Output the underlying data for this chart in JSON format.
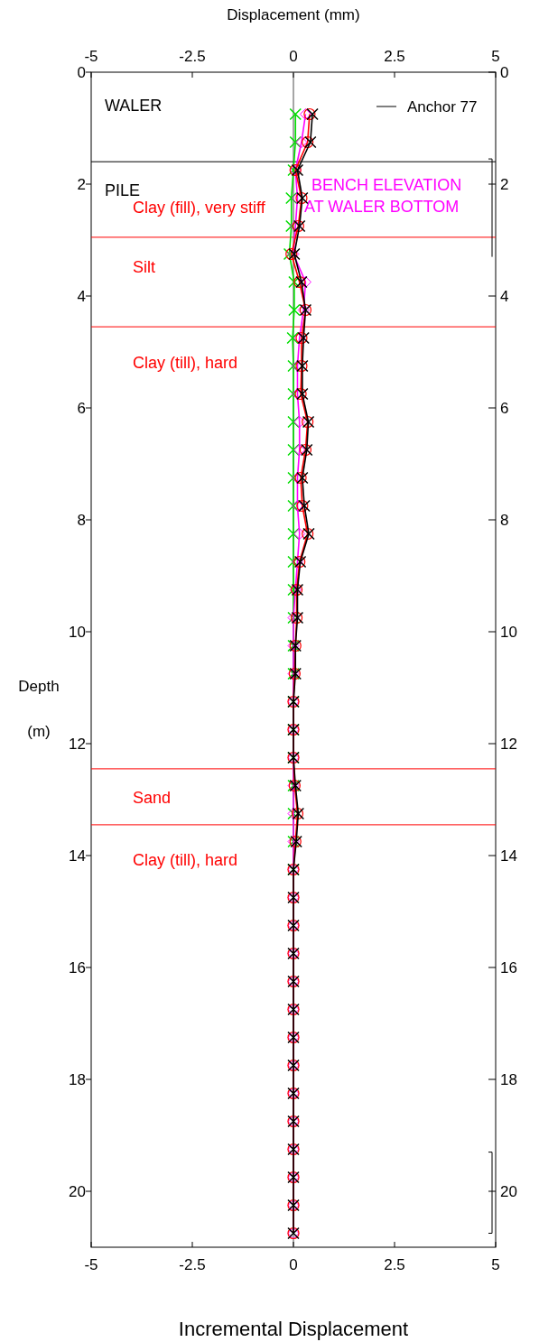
{
  "chart_data": {
    "type": "line",
    "orientation": "horizontal",
    "xlabel": "Incremental Displacement",
    "x2label": "Displacement (mm)",
    "ylabel": "Depth (m)",
    "xlim": [
      -5,
      5
    ],
    "xticks": [
      -5,
      -2.5,
      0,
      2.5,
      5
    ],
    "x2lim": [
      -5,
      5
    ],
    "x2ticks": [
      -5,
      -2.5,
      0,
      2.5,
      5
    ],
    "ylim": [
      21,
      0
    ],
    "yticks": [
      0,
      2,
      4,
      6,
      8,
      10,
      12,
      14,
      16,
      18,
      20
    ],
    "y2lim": [
      21,
      0
    ],
    "y2ticks": [
      0,
      2,
      4,
      6,
      8,
      10,
      12,
      14,
      16,
      18,
      20
    ],
    "x": [
      0.75,
      1.25,
      1.75,
      2.25,
      2.75,
      3.25,
      3.75,
      4.25,
      4.75,
      5.25,
      5.75,
      6.25,
      6.75,
      7.25,
      7.75,
      8.25,
      8.75,
      9.25,
      9.75,
      10.25,
      10.75,
      11.25,
      11.75,
      12.25,
      12.75,
      13.25,
      13.75,
      14.25,
      14.75,
      15.25,
      15.75,
      16.25,
      16.75,
      17.25,
      17.75,
      18.25,
      18.75,
      19.25,
      19.75,
      20.25,
      20.75
    ],
    "series": [
      {
        "color": "#00dd00",
        "marker": "cross",
        "values": [
          0.05,
          0.05,
          0,
          -0.05,
          -0.05,
          -0.1,
          0.02,
          0.02,
          -0.02,
          0,
          0,
          0,
          0,
          0,
          0,
          0,
          0,
          0,
          0,
          0,
          0,
          0,
          0,
          0,
          0,
          0,
          0,
          0,
          null,
          null,
          null,
          null,
          null,
          null,
          null,
          null,
          null,
          null,
          null,
          null,
          null
        ]
      },
      {
        "color": "#ff00ff",
        "marker": "diamond",
        "values": [
          0.3,
          0.2,
          0.05,
          0.1,
          0.05,
          0,
          0.3,
          0.25,
          0.15,
          0.1,
          0.1,
          0.15,
          0.15,
          0.1,
          0.1,
          0.15,
          0.1,
          0.05,
          0,
          0,
          0,
          0,
          0,
          0,
          0,
          0,
          0,
          0,
          0,
          0,
          0,
          0,
          0,
          0,
          0,
          0,
          0,
          0,
          0,
          0,
          0
        ]
      },
      {
        "color": "#ff0000",
        "marker": "circle",
        "values": [
          0.4,
          0.35,
          0.05,
          0.2,
          0.12,
          -0.05,
          0.15,
          0.3,
          0.2,
          0.2,
          0.18,
          0.35,
          0.3,
          0.18,
          0.22,
          0.35,
          0.15,
          0.08,
          0.08,
          0.05,
          0.03,
          0,
          0,
          0,
          0.03,
          0.1,
          0.05,
          0,
          0,
          0,
          0,
          0,
          0,
          0,
          0,
          0,
          0,
          0,
          0,
          0,
          0
        ]
      },
      {
        "name": "Anchor 77",
        "color": "#000000",
        "marker": "cross",
        "values": [
          0.47,
          0.42,
          0.1,
          0.22,
          0.15,
          0.02,
          0.2,
          0.3,
          0.25,
          0.22,
          0.22,
          0.37,
          0.33,
          0.22,
          0.27,
          0.38,
          0.17,
          0.1,
          0.1,
          0.05,
          0.05,
          0,
          0,
          0,
          0.05,
          0.12,
          0.07,
          0,
          0,
          0,
          0,
          0,
          0,
          0,
          0,
          0,
          0,
          0,
          0,
          0,
          0
        ]
      }
    ],
    "ref_lines": [
      {
        "axis": "x",
        "value": 0,
        "color": "#888888"
      },
      {
        "axis": "y",
        "value": 1.6,
        "color": "#000000"
      },
      {
        "axis": "y",
        "value": 2.95,
        "color": "#ff0000"
      },
      {
        "axis": "y",
        "value": 4.55,
        "color": "#ff0000"
      },
      {
        "axis": "y",
        "value": 12.45,
        "color": "#ff0000"
      },
      {
        "axis": "y",
        "value": 13.45,
        "color": "#ff0000"
      }
    ],
    "annotations": [
      "WALER",
      "PILE",
      "Clay (fill), very stiff",
      "Silt",
      "Clay (till), hard",
      "Sand",
      "Clay (till), hard",
      "BENCH ELEVATION",
      "AT WALER BOTTOM"
    ],
    "legend": "top right",
    "grid": false
  }
}
